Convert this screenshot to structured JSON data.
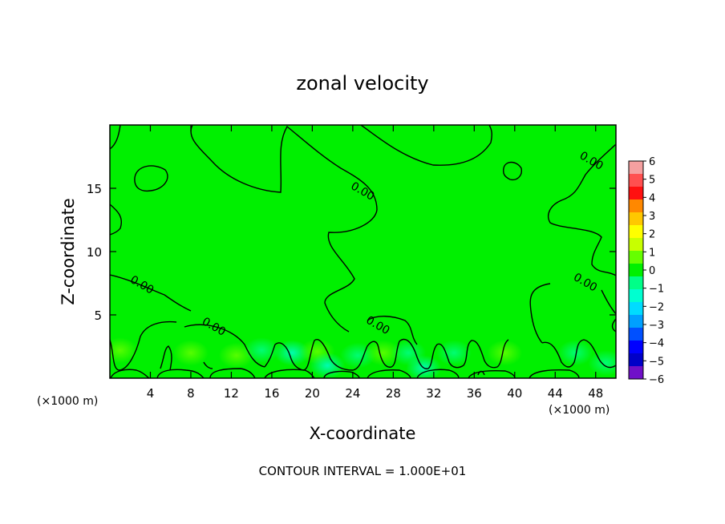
{
  "chart_data": {
    "type": "heatmap",
    "title": "zonal velocity",
    "xlabel": "X-coordinate",
    "ylabel": "Z-coordinate",
    "x_unit_label": "(×1000 m)",
    "y_unit_label": "(×1000 m)",
    "footer": "CONTOUR INTERVAL = 1.000E+01",
    "xlim": [
      0,
      50
    ],
    "ylim": [
      0,
      20
    ],
    "x_ticks": [
      4,
      8,
      12,
      16,
      20,
      24,
      28,
      32,
      36,
      40,
      44,
      48
    ],
    "x_tick_labels": [
      "4",
      "8",
      "12",
      "16",
      "20",
      "24",
      "28",
      "32",
      "36",
      "40",
      "44",
      "48"
    ],
    "y_ticks": [
      5,
      10,
      15
    ],
    "y_tick_labels": [
      "5",
      "10",
      "15"
    ],
    "field_background_value": 0,
    "near_surface_anomalies": [
      {
        "x": 1.0,
        "z": 2.2,
        "value": 1.0
      },
      {
        "x": 8.0,
        "z": 2.0,
        "value": 0.8
      },
      {
        "x": 12.5,
        "z": 1.8,
        "value": 0.8
      },
      {
        "x": 15.0,
        "z": 2.2,
        "value": -1.0
      },
      {
        "x": 18.0,
        "z": 2.0,
        "value": -1.8
      },
      {
        "x": 20.5,
        "z": 2.1,
        "value": 0.9
      },
      {
        "x": 21.5,
        "z": 1.0,
        "value": -1.6
      },
      {
        "x": 24.5,
        "z": 1.8,
        "value": -1.0
      },
      {
        "x": 27.0,
        "z": 2.0,
        "value": 0.7
      },
      {
        "x": 29.5,
        "z": 2.0,
        "value": -0.9
      },
      {
        "x": 31.0,
        "z": 0.8,
        "value": -1.5
      },
      {
        "x": 34.0,
        "z": 2.0,
        "value": -0.8
      },
      {
        "x": 39.0,
        "z": 2.0,
        "value": 0.6
      },
      {
        "x": 46.0,
        "z": 2.0,
        "value": -0.7
      },
      {
        "x": 49.0,
        "z": 1.2,
        "value": -0.6
      }
    ],
    "contour_levels": [
      0
    ],
    "contour_labels": [
      {
        "text": "0.00",
        "x": 25.0,
        "z": 14.8
      },
      {
        "text": "0.00",
        "x": 47.6,
        "z": 17.2
      },
      {
        "text": "0.00",
        "x": 3.2,
        "z": 7.4
      },
      {
        "text": "0.00",
        "x": 47.0,
        "z": 7.6
      },
      {
        "text": "0.00",
        "x": 10.3,
        "z": 4.1
      },
      {
        "text": "0.00",
        "x": 26.5,
        "z": 4.2
      }
    ],
    "colorbar": {
      "ticks": [
        6,
        5,
        4,
        3,
        2,
        1,
        0,
        -1,
        -2,
        -3,
        -4,
        -5,
        -6
      ],
      "tick_labels": [
        "6",
        "5",
        "4",
        "3",
        "2",
        "1",
        "0",
        "−1",
        "−2",
        "−3",
        "−4",
        "−5",
        "−6"
      ],
      "colors": [
        "#f5a0a0",
        "#ff5050",
        "#ff1010",
        "#ff8800",
        "#ffc800",
        "#ffff00",
        "#c8ff00",
        "#66ff00",
        "#00f000",
        "#00ff88",
        "#00ffd0",
        "#00dcff",
        "#00a0ff",
        "#0050ff",
        "#0000ff",
        "#0000c8",
        "#7010c8"
      ]
    }
  }
}
